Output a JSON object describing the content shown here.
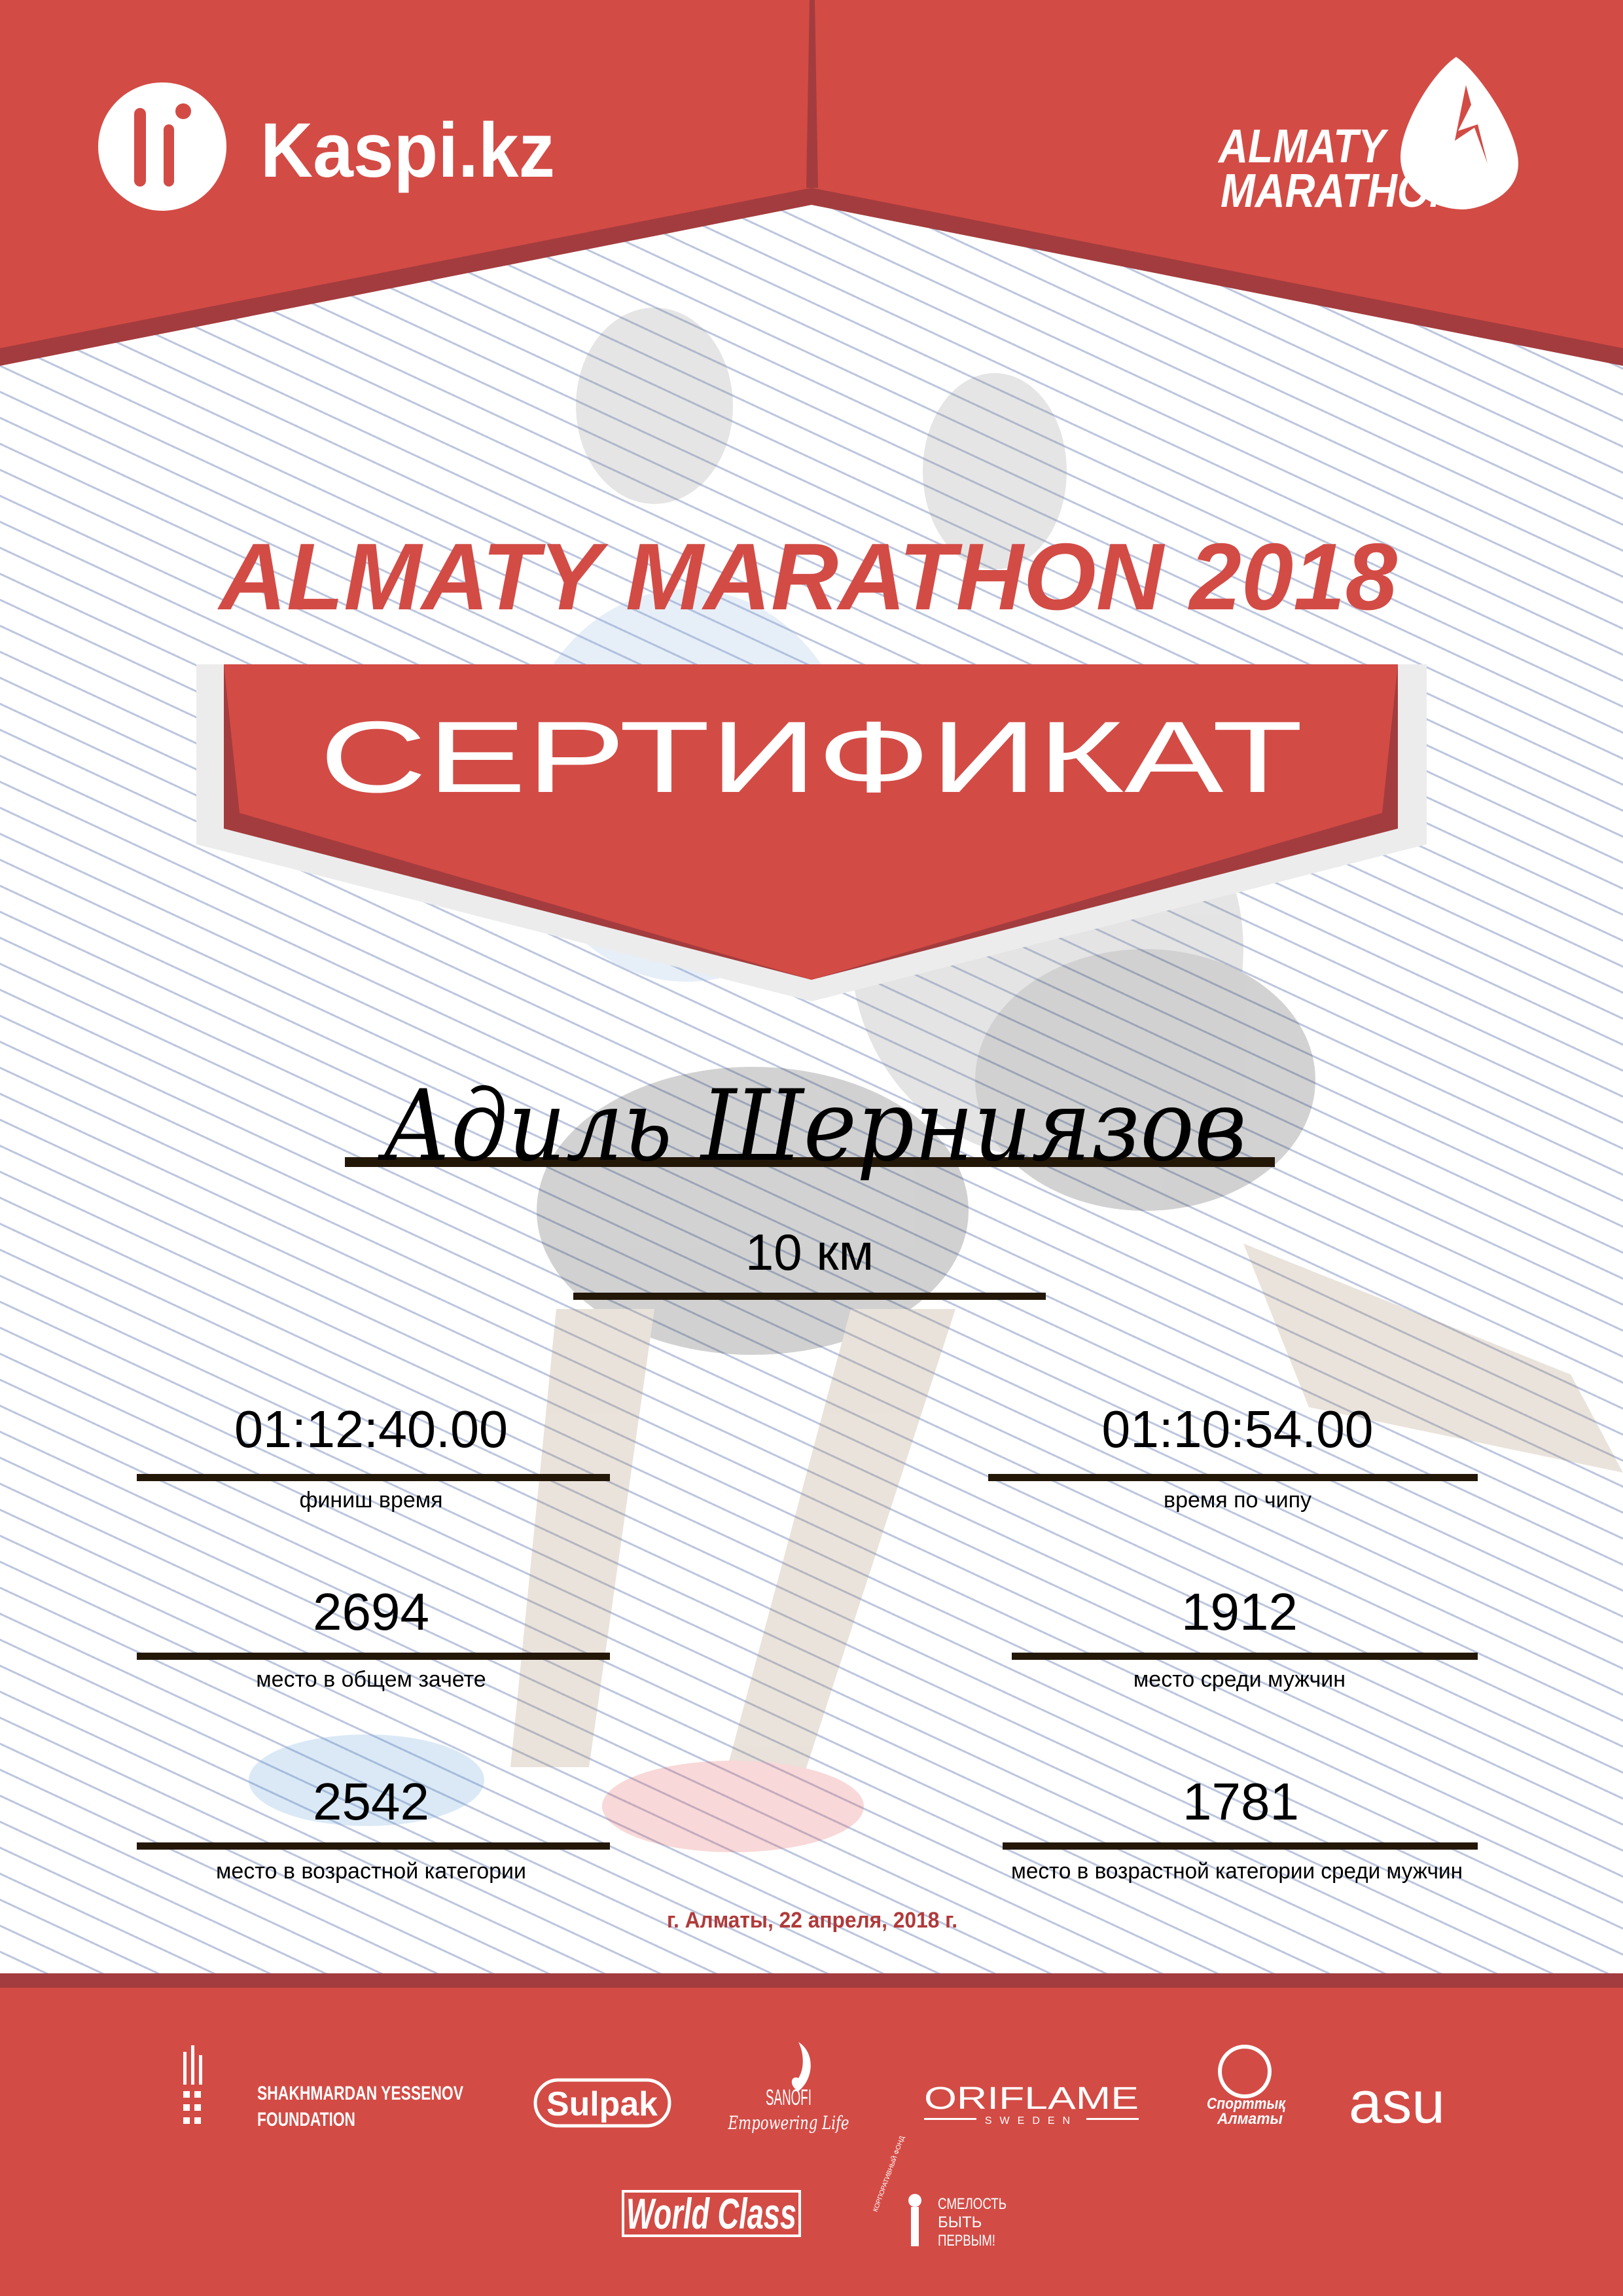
{
  "colors": {
    "brand_red": "#d34b45",
    "dark_red": "#a33c3e",
    "date_red": "#b03a3a",
    "text": "#000000",
    "rule": "#231708"
  },
  "header": {
    "left_logo": {
      "text": "Kaspi.kz",
      "icon": "kaspi-people-icon"
    },
    "right_logo": {
      "line1": "ALMATY",
      "line2": "MARATHON",
      "icon": "runner-drop-icon"
    }
  },
  "title": "ALMATY MARATHON 2018",
  "banner": "СЕРТИФИКАТ",
  "participant": {
    "name": "Адиль Шерниязов",
    "distance": "10 км"
  },
  "results": [
    {
      "value": "01:12:40.00",
      "label": "финиш время"
    },
    {
      "value": "01:10:54.00",
      "label": "время по чипу"
    },
    {
      "value": "2694",
      "label": "место в общем зачете"
    },
    {
      "value": "1912",
      "label": "место среди мужчин"
    },
    {
      "value": "2542",
      "label": "место в возрастной категории"
    },
    {
      "value": "1781",
      "label": "место в возрастной категории среди мужчин"
    }
  ],
  "date": "г. Алматы, 22 апреля, 2018 г.",
  "sponsors": {
    "yessenov": {
      "line1": "SHAKHMARDAN YESSENOV",
      "line2": "FOUNDATION"
    },
    "sulpak": "Sulpak",
    "sanofi": {
      "name": "SANOFI",
      "tagline": "Empowering Life"
    },
    "oriflame": {
      "name": "ORIFLAME",
      "sub": "SWEDEN"
    },
    "sport_almaty": {
      "line1": "Спорттық",
      "line2": "Алматы"
    },
    "asu": "asu",
    "worldclass": "World Class",
    "smelost": {
      "line1": "СМЕЛОСТЬ",
      "line2": "БЫТЬ",
      "line3": "ПЕРВЫМ!",
      "arc": "КОРПОРАТИВНЫЙ ФОНД"
    }
  }
}
